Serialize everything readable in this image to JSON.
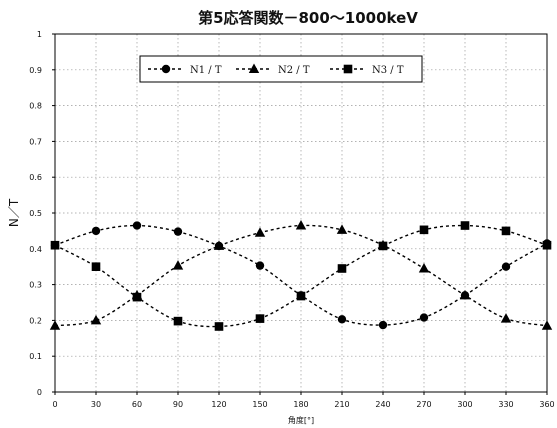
{
  "chart_data": {
    "type": "line",
    "title": "第5応答関数－800～1000keV",
    "xlabel": "角度[°]",
    "ylabel": "N／T",
    "x": [
      0,
      30,
      60,
      90,
      120,
      150,
      180,
      210,
      240,
      270,
      300,
      330,
      360
    ],
    "xticks": [
      "0",
      "30",
      "60",
      "90",
      "120",
      "150",
      "180",
      "210",
      "240",
      "270",
      "300",
      "330",
      "360"
    ],
    "xlim": [
      0,
      360
    ],
    "ylim": [
      0,
      1
    ],
    "yticks": [
      "0",
      "0.1",
      "0.2",
      "0.3",
      "0.4",
      "0.5",
      "0.6",
      "0.7",
      "0.8",
      "0.9",
      "1"
    ],
    "grid": true,
    "legend_position": "top",
    "series": [
      {
        "name": "N1 / T",
        "marker": "circle",
        "values": [
          0.41,
          0.45,
          0.465,
          0.448,
          0.408,
          0.353,
          0.27,
          0.203,
          0.187,
          0.208,
          0.27,
          0.35,
          0.415
        ]
      },
      {
        "name": "N2 / T",
        "marker": "triangle",
        "values": [
          0.185,
          0.2,
          0.27,
          0.353,
          0.408,
          0.445,
          0.465,
          0.453,
          0.41,
          0.345,
          0.27,
          0.205,
          0.185
        ]
      },
      {
        "name": "N3 / T",
        "marker": "square",
        "values": [
          0.41,
          0.35,
          0.265,
          0.198,
          0.183,
          0.205,
          0.268,
          0.345,
          0.408,
          0.453,
          0.465,
          0.45,
          0.41
        ]
      }
    ]
  }
}
